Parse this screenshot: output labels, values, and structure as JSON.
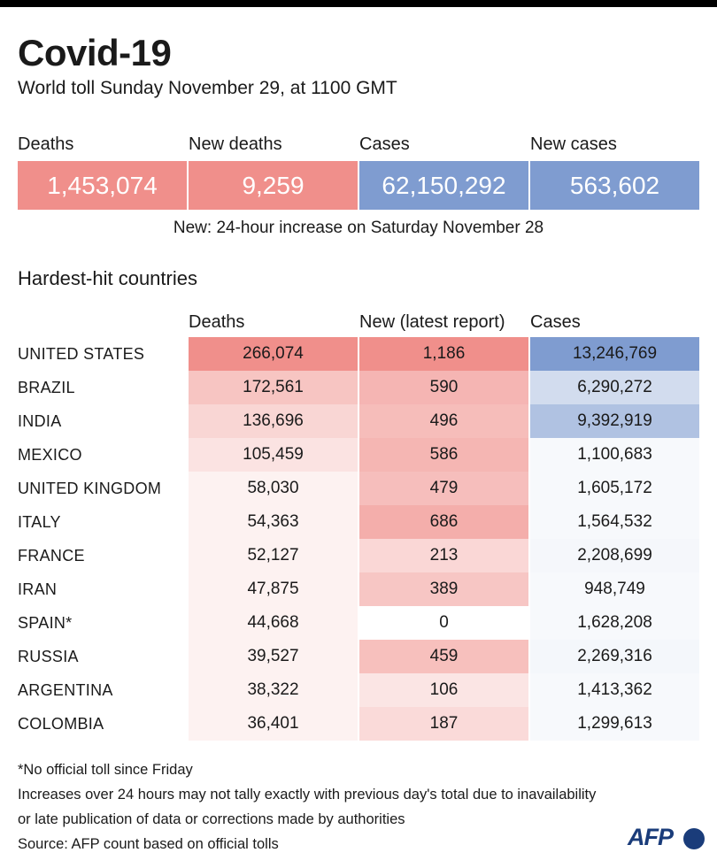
{
  "header": {
    "title": "Covid-19",
    "subtitle": "World toll Sunday November 29,  at 1100 GMT"
  },
  "summary": {
    "items": [
      {
        "label": "Deaths",
        "value": "1,453,074",
        "color": "#f08f8b"
      },
      {
        "label": "New deaths",
        "value": "9,259",
        "color": "#f08f8b"
      },
      {
        "label": "Cases",
        "value": "62,150,292",
        "color": "#7f9cd0"
      },
      {
        "label": "New cases",
        "value": "563,602",
        "color": "#7f9cd0"
      }
    ],
    "note": "New: 24-hour increase on Saturday November 28"
  },
  "chart_data": {
    "type": "table",
    "title": "Hardest-hit countries",
    "columns": [
      "Deaths",
      "New (latest report)",
      "Cases"
    ],
    "rows": [
      {
        "country": "UNITED STATES",
        "deaths": "266,074",
        "new": "1,186",
        "cases": "13,246,769"
      },
      {
        "country": "BRAZIL",
        "deaths": "172,561",
        "new": "590",
        "cases": "6,290,272"
      },
      {
        "country": "INDIA",
        "deaths": "136,696",
        "new": "496",
        "cases": "9,392,919"
      },
      {
        "country": "MEXICO",
        "deaths": "105,459",
        "new": "586",
        "cases": "1,100,683"
      },
      {
        "country": "UNITED KINGDOM",
        "deaths": "58,030",
        "new": "479",
        "cases": "1,605,172"
      },
      {
        "country": "ITALY",
        "deaths": "54,363",
        "new": "686",
        "cases": "1,564,532"
      },
      {
        "country": "FRANCE",
        "deaths": "52,127",
        "new": "213",
        "cases": "2,208,699"
      },
      {
        "country": "IRAN",
        "deaths": "47,875",
        "new": "389",
        "cases": "948,749"
      },
      {
        "country": "SPAIN*",
        "deaths": "44,668",
        "new": "0",
        "cases": "1,628,208"
      },
      {
        "country": "RUSSIA",
        "deaths": "39,527",
        "new": "459",
        "cases": "2,269,316"
      },
      {
        "country": "ARGENTINA",
        "deaths": "38,322",
        "new": "106",
        "cases": "1,413,362"
      },
      {
        "country": "COLOMBIA",
        "deaths": "36,401",
        "new": "187",
        "cases": "1,299,613"
      }
    ],
    "color_scale": {
      "deaths_color": "#f08f8b",
      "new_color": "#f08f8b",
      "cases_color": "#7f9cd0"
    }
  },
  "footer": {
    "lines": [
      "*No official  toll since Friday",
      "Increases over 24 hours may not tally exactly with previous day's total due to inavailability",
      "or late publication of data or corrections made by authorities",
      "Source: AFP count based on official tolls"
    ],
    "logo": "AFP"
  }
}
